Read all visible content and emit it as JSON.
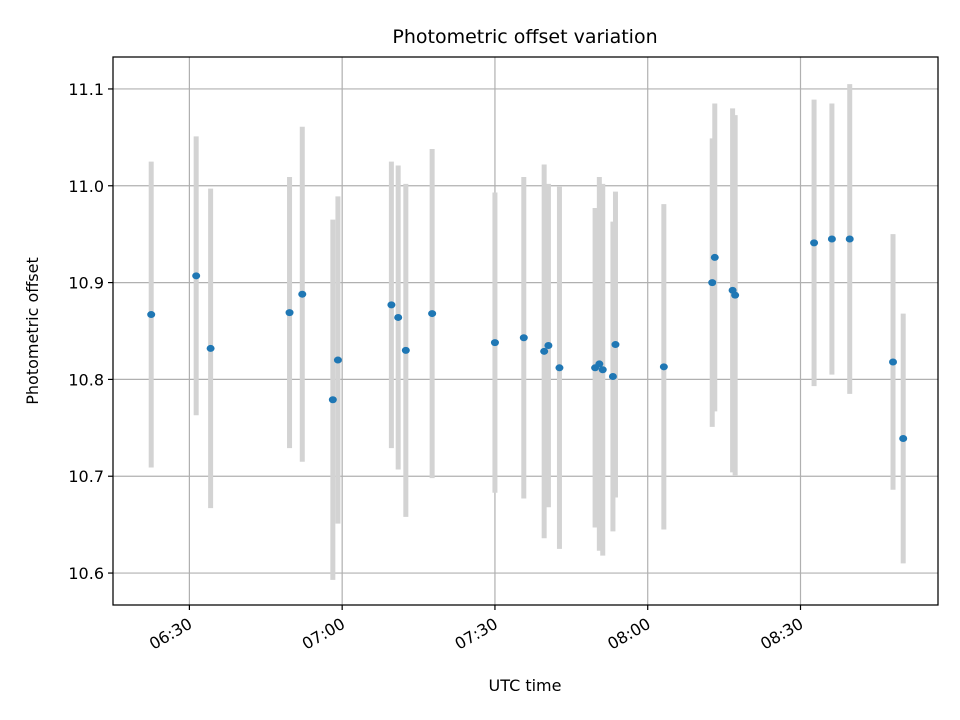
{
  "chart_data": {
    "type": "scatter",
    "title": "Photometric offset variation",
    "xlabel": "UTC time",
    "ylabel": "Photometric offset",
    "x_ticks": [
      "06:30",
      "07:00",
      "07:30",
      "08:00",
      "08:30"
    ],
    "y_ticks": [
      "10.6",
      "10.7",
      "10.8",
      "10.9",
      "11.0",
      "11.1"
    ],
    "xlim": [
      "06:15",
      "08:57"
    ],
    "ylim": [
      10.567,
      11.133
    ],
    "grid": true,
    "marker_color": "#1f77b4",
    "errorbar_color": "#d3d3d3",
    "points": [
      {
        "x": "06:22:30",
        "y": 10.867,
        "err": 0.158
      },
      {
        "x": "06:31:20",
        "y": 10.907,
        "err": 0.144
      },
      {
        "x": "06:34:10",
        "y": 10.832,
        "err": 0.165
      },
      {
        "x": "06:49:40",
        "y": 10.869,
        "err": 0.14
      },
      {
        "x": "06:52:10",
        "y": 10.888,
        "err": 0.173
      },
      {
        "x": "06:58:10",
        "y": 10.779,
        "err": 0.186
      },
      {
        "x": "06:59:10",
        "y": 10.82,
        "err": 0.169
      },
      {
        "x": "07:09:40",
        "y": 10.877,
        "err": 0.148
      },
      {
        "x": "07:11:00",
        "y": 10.864,
        "err": 0.157
      },
      {
        "x": "07:12:30",
        "y": 10.83,
        "err": 0.172
      },
      {
        "x": "07:17:40",
        "y": 10.868,
        "err": 0.17
      },
      {
        "x": "07:30:00",
        "y": 10.838,
        "err": 0.155
      },
      {
        "x": "07:35:40",
        "y": 10.843,
        "err": 0.166
      },
      {
        "x": "07:39:40",
        "y": 10.829,
        "err": 0.193
      },
      {
        "x": "07:40:30",
        "y": 10.835,
        "err": 0.167
      },
      {
        "x": "07:42:40",
        "y": 10.812,
        "err": 0.187
      },
      {
        "x": "07:49:40",
        "y": 10.812,
        "err": 0.165
      },
      {
        "x": "07:50:30",
        "y": 10.816,
        "err": 0.193
      },
      {
        "x": "07:51:10",
        "y": 10.81,
        "err": 0.192
      },
      {
        "x": "07:53:10",
        "y": 10.803,
        "err": 0.16
      },
      {
        "x": "07:53:40",
        "y": 10.836,
        "err": 0.158
      },
      {
        "x": "08:03:10",
        "y": 10.813,
        "err": 0.168
      },
      {
        "x": "08:12:40",
        "y": 10.9,
        "err": 0.149
      },
      {
        "x": "08:13:10",
        "y": 10.926,
        "err": 0.159
      },
      {
        "x": "08:16:40",
        "y": 10.892,
        "err": 0.188
      },
      {
        "x": "08:17:10",
        "y": 10.887,
        "err": 0.186
      },
      {
        "x": "08:32:40",
        "y": 10.941,
        "err": 0.148
      },
      {
        "x": "08:36:10",
        "y": 10.945,
        "err": 0.14
      },
      {
        "x": "08:39:40",
        "y": 10.945,
        "err": 0.16
      },
      {
        "x": "08:48:10",
        "y": 10.818,
        "err": 0.132
      },
      {
        "x": "08:50:10",
        "y": 10.739,
        "err": 0.129
      }
    ]
  }
}
